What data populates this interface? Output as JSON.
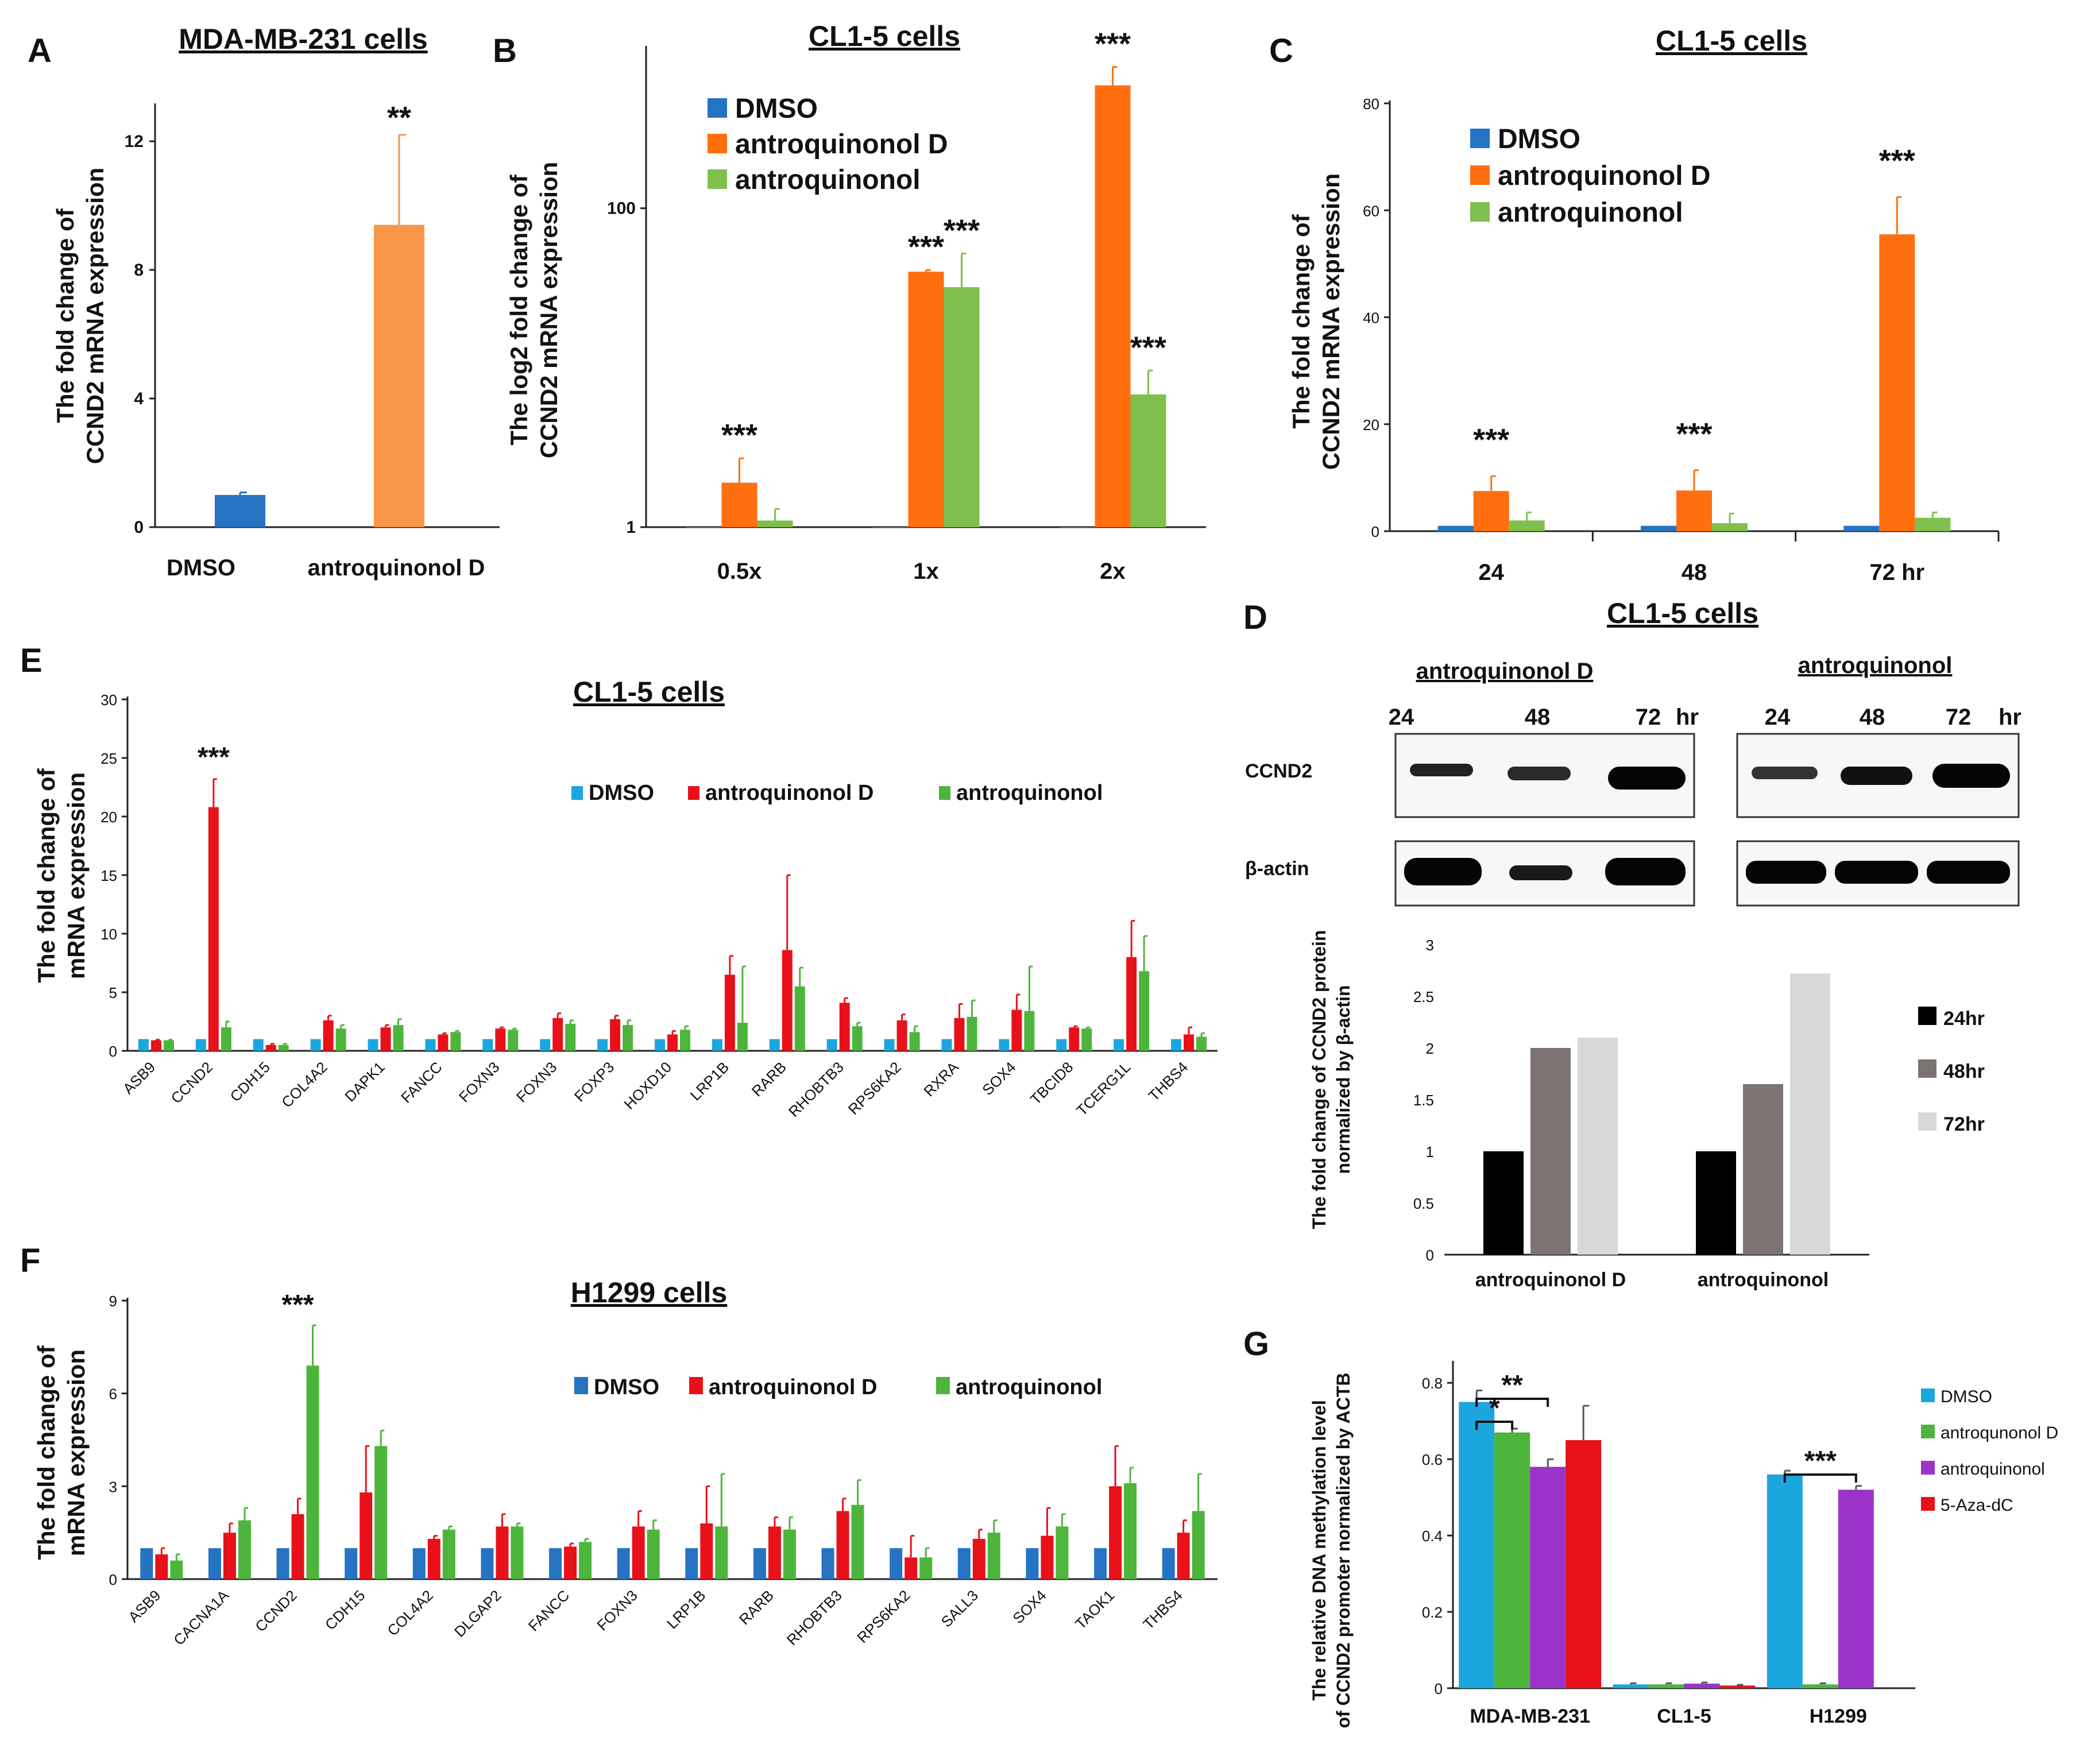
{
  "colors": {
    "dmso": "#2673C4",
    "antroD_A": "#F79646",
    "antroD": "#FF6F0F",
    "antro": "#7FBF4E",
    "antroD_red": "#E8111A",
    "antro_green": "#4DB53C",
    "g_dmso": "#1CA6DE",
    "g_antroD": "#4DB53C",
    "g_antro": "#9B34C9",
    "g_aza": "#E8111A",
    "h24": "#000000",
    "h48": "#7B7472",
    "h72": "#D8D8D8"
  },
  "chart_data": [
    {
      "id": "A",
      "type": "bar",
      "panel_label": "A",
      "title": "MDA-MB-231 cells",
      "ylabel": [
        "The fold change of",
        "CCND2 mRNA expression"
      ],
      "ylim": [
        0,
        13
      ],
      "yticks": [
        0,
        4,
        8,
        12
      ],
      "ytick_labels": [
        "0",
        "4",
        "8",
        "12"
      ],
      "categories": [
        "DMSO",
        "antroquinonol D"
      ],
      "values": [
        1.0,
        9.4
      ],
      "errors": [
        0.08,
        2.8
      ],
      "significance": [
        "",
        "**"
      ]
    },
    {
      "id": "B",
      "type": "bar",
      "panel_label": "B",
      "title": "CL1-5 cells",
      "ylabel": [
        "The log2 fold change of",
        "CCND2 mRNA expression"
      ],
      "yscale": "log",
      "ylim": [
        1,
        1000
      ],
      "yticks": [
        1,
        100
      ],
      "ytick_labels": [
        "1",
        "100"
      ],
      "categories": [
        "0.5x",
        "1x",
        "2x"
      ],
      "series": [
        {
          "name": "DMSO",
          "values": [
            1,
            1,
            1
          ],
          "errors": [
            0,
            0,
            0
          ]
        },
        {
          "name": "antroquinonol D",
          "values": [
            1.9,
            40,
            590
          ],
          "errors": [
            0.8,
            1,
            180
          ]
        },
        {
          "name": "antroquinonol",
          "values": [
            1.1,
            32,
            6.8
          ],
          "errors": [
            0.2,
            20,
            2.8
          ]
        }
      ],
      "significance": [
        {
          "category": "0.5x",
          "series": "antroquinonol D",
          "label": "***"
        },
        {
          "category": "1x",
          "series": "antroquinonol D",
          "label": "***"
        },
        {
          "category": "1x",
          "series": "antroquinonol",
          "label": "***"
        },
        {
          "category": "2x",
          "series": "antroquinonol D",
          "label": "***"
        },
        {
          "category": "2x",
          "series": "antroquinonol",
          "label": "***"
        }
      ],
      "legend": [
        "DMSO",
        "antroquinonol D",
        "antroquinonol"
      ],
      "legend_position": "top-left"
    },
    {
      "id": "C",
      "type": "bar",
      "panel_label": "C",
      "title": "CL1-5 cells",
      "ylabel": [
        "The fold change of",
        "CCND2 mRNA expression"
      ],
      "ylim": [
        0,
        80
      ],
      "yticks": [
        0,
        20,
        40,
        60,
        80
      ],
      "ytick_labels": [
        "0",
        "20",
        "40",
        "60",
        "80"
      ],
      "categories": [
        "24",
        "48",
        "72 hr"
      ],
      "series": [
        {
          "name": "DMSO",
          "values": [
            1,
            1,
            1
          ],
          "errors": [
            0,
            0,
            0
          ]
        },
        {
          "name": "antroquinonol D",
          "values": [
            7.5,
            7.6,
            55.5
          ],
          "errors": [
            2.8,
            3.8,
            7.0
          ]
        },
        {
          "name": "antroquinonol",
          "values": [
            2.0,
            1.5,
            2.5
          ],
          "errors": [
            1.5,
            1.8,
            1.0
          ]
        }
      ],
      "significance_labels": [
        "***",
        "***",
        "***"
      ],
      "legend": [
        "DMSO",
        "antroquinonol D",
        "antroquinonol"
      ],
      "legend_position": "top-left"
    },
    {
      "id": "E",
      "type": "bar",
      "panel_label": "E",
      "title": "CL1-5 cells",
      "ylabel": [
        "The fold change of",
        "mRNA expression"
      ],
      "ylim": [
        0,
        30
      ],
      "yticks": [
        0,
        5,
        10,
        15,
        20,
        25,
        30
      ],
      "ytick_labels": [
        "0",
        "5",
        "10",
        "15",
        "20",
        "25",
        "30"
      ],
      "categories": [
        "ASB9",
        "CCND2",
        "CDH15",
        "COL4A2",
        "DAPK1",
        "FANCC",
        "FOXN3",
        "FOXN3",
        "FOXP3",
        "HOXD10",
        "LRP1B",
        "RARB",
        "RHOBTB3",
        "RPS6KA2",
        "RXRA",
        "SOX4",
        "TBCID8",
        "TCERG1L",
        "THBS4"
      ],
      "series": [
        {
          "name": "DMSO",
          "values": [
            1,
            1,
            1,
            1,
            1,
            1,
            1,
            1,
            1,
            1,
            1,
            1,
            1,
            1,
            1,
            1,
            1,
            1,
            1
          ],
          "errors": [
            0,
            0,
            0,
            0,
            0,
            0,
            0,
            0,
            0,
            0,
            0,
            0,
            0,
            0,
            0,
            0,
            0,
            0,
            0
          ]
        },
        {
          "name": "antroquinonol D",
          "values": [
            0.9,
            20.8,
            0.5,
            2.6,
            2.0,
            1.4,
            1.9,
            2.8,
            2.7,
            1.4,
            6.5,
            8.6,
            4.1,
            2.6,
            2.8,
            3.5,
            2.0,
            8.0,
            1.4
          ],
          "errors": [
            0.05,
            2.4,
            0.1,
            0.4,
            0.2,
            0.1,
            0.1,
            0.4,
            0.3,
            0.3,
            1.6,
            6.4,
            0.4,
            0.5,
            1.2,
            1.3,
            0.1,
            3.1,
            0.6
          ]
        },
        {
          "name": "antroquinonol",
          "values": [
            0.9,
            2.0,
            0.5,
            1.9,
            2.2,
            1.6,
            1.8,
            2.3,
            2.2,
            1.8,
            2.4,
            5.5,
            2.1,
            1.6,
            2.9,
            3.4,
            1.9,
            6.8,
            1.2
          ],
          "errors": [
            0.05,
            0.5,
            0.1,
            0.3,
            0.5,
            0.1,
            0.1,
            0.3,
            0.4,
            0.3,
            4.8,
            1.6,
            0.3,
            0.5,
            1.4,
            3.8,
            0.1,
            3.0,
            0.3
          ]
        }
      ],
      "significance_labels": [
        "",
        "***",
        "",
        "",
        "",
        "",
        "",
        "",
        "",
        "",
        "",
        "",
        "",
        "",
        "",
        "",
        "",
        "",
        ""
      ],
      "legend": [
        "DMSO",
        "antroquinonol D",
        "antroquinonol"
      ],
      "legend_position": "top-center"
    },
    {
      "id": "F",
      "type": "bar",
      "panel_label": "F",
      "title": "H1299 cells",
      "ylabel": [
        "The fold change of",
        "mRNA expression"
      ],
      "ylim": [
        0,
        9
      ],
      "yticks": [
        0,
        3,
        6,
        9
      ],
      "ytick_labels": [
        "0",
        "3",
        "6",
        "9"
      ],
      "categories": [
        "ASB9",
        "CACNA1A",
        "CCND2",
        "CDH15",
        "COL4A2",
        "DLGAP2",
        "FANCC",
        "FOXN3",
        "LRP1B",
        "RARB",
        "RHOBTB3",
        "RPS6KA2",
        "SALL3",
        "SOX4",
        "TAOK1",
        "THBS4"
      ],
      "series": [
        {
          "name": "DMSO",
          "values": [
            1,
            1,
            1,
            1,
            1,
            1,
            1,
            1,
            1,
            1,
            1,
            1,
            1,
            1,
            1,
            1
          ],
          "errors": [
            0,
            0,
            0,
            0,
            0,
            0,
            0,
            0,
            0,
            0,
            0,
            0,
            0,
            0,
            0,
            0
          ]
        },
        {
          "name": "antroquinonol D",
          "values": [
            0.8,
            1.5,
            2.1,
            2.8,
            1.3,
            1.7,
            1.05,
            1.7,
            1.8,
            1.7,
            2.2,
            0.7,
            1.3,
            1.4,
            3.0,
            1.5
          ],
          "errors": [
            0.2,
            0.3,
            0.5,
            1.5,
            0.1,
            0.4,
            0.1,
            0.5,
            1.2,
            0.3,
            0.4,
            0.7,
            0.3,
            0.9,
            1.3,
            0.4
          ]
        },
        {
          "name": "antroquinonol",
          "values": [
            0.6,
            1.9,
            6.9,
            4.3,
            1.6,
            1.7,
            1.2,
            1.6,
            1.7,
            1.6,
            2.4,
            0.7,
            1.5,
            1.7,
            3.1,
            2.2
          ],
          "errors": [
            0.2,
            0.4,
            1.3,
            0.5,
            0.1,
            0.1,
            0.1,
            0.3,
            1.7,
            0.4,
            0.8,
            0.3,
            0.4,
            0.4,
            0.5,
            1.2
          ]
        }
      ],
      "significance_labels": [
        "",
        "",
        "***",
        "",
        "",
        "",
        "",
        "",
        "",
        "",
        "",
        "",
        "",
        "",
        "",
        ""
      ],
      "legend": [
        "DMSO",
        "antroquinonol D",
        "antroquinonol"
      ],
      "legend_position": "top-center"
    },
    {
      "id": "D",
      "type": "bar",
      "ylabel": [
        "The fold change of CCND2  protein",
        "normalized by β-actin"
      ],
      "ylim": [
        0,
        3
      ],
      "yticks": [
        0,
        0.5,
        1,
        1.5,
        2,
        2.5,
        3
      ],
      "ytick_labels": [
        "0",
        "0.5",
        "1",
        "1.5",
        "2",
        "2.5",
        "3"
      ],
      "categories": [
        "antroquinonol D",
        "antroquinonol"
      ],
      "series": [
        {
          "name": "24hr",
          "values": [
            1.0,
            1.0
          ]
        },
        {
          "name": "48hr",
          "values": [
            2.0,
            1.65
          ]
        },
        {
          "name": "72hr",
          "values": [
            2.1,
            2.72
          ]
        }
      ],
      "legend": [
        "24hr",
        "48hr",
        "72hr"
      ],
      "legend_position": "right"
    },
    {
      "id": "G",
      "type": "bar",
      "panel_label": "G",
      "ylabel": [
        "The relative DNA methylation level",
        "of CCND2 promoter normalized by ACTB"
      ],
      "ylim": [
        0,
        0.85
      ],
      "yticks": [
        0,
        0.2,
        0.4,
        0.6,
        0.8
      ],
      "ytick_labels": [
        "0",
        "0.2",
        "0.4",
        "0.6",
        "0.8"
      ],
      "categories": [
        "MDA-MB-231",
        "CL1-5",
        "H1299"
      ],
      "series": [
        {
          "name": "DMSO",
          "values": [
            0.75,
            0.01,
            0.56
          ],
          "errors": [
            0.03,
            0.003,
            0.01
          ]
        },
        {
          "name": "antroqunonol D",
          "values": [
            0.67,
            0.01,
            0.01
          ],
          "errors": [
            0.01,
            0.003,
            0.003
          ]
        },
        {
          "name": "antroquinonol",
          "values": [
            0.58,
            0.012,
            0.52
          ],
          "errors": [
            0.02,
            0.003,
            0.01
          ]
        },
        {
          "name": "5-Aza-dC",
          "values": [
            0.65,
            0.007,
            null
          ],
          "errors": [
            0.09,
            0.002,
            null
          ]
        }
      ],
      "brackets": [
        {
          "category": "MDA-MB-231",
          "from": "DMSO",
          "to": "antroqunonol D",
          "label": "*"
        },
        {
          "category": "MDA-MB-231",
          "from": "DMSO",
          "to": "antroquinonol",
          "label": "**"
        },
        {
          "category": "H1299",
          "from": "DMSO",
          "to": "antroquinonol",
          "label": "***"
        }
      ],
      "legend": [
        "DMSO",
        "antroqunonol D",
        "antroquinonol",
        "5-Aza-dC"
      ],
      "legend_position": "right"
    }
  ],
  "western": {
    "panel_label": "D",
    "title": "CL1-5 cells",
    "groups": [
      "antroquinonol  D",
      "antroquinonol"
    ],
    "timepoints": [
      "24",
      "48",
      "72"
    ],
    "hr_label": "hr",
    "rows": [
      "CCND2",
      "β-actin"
    ]
  }
}
